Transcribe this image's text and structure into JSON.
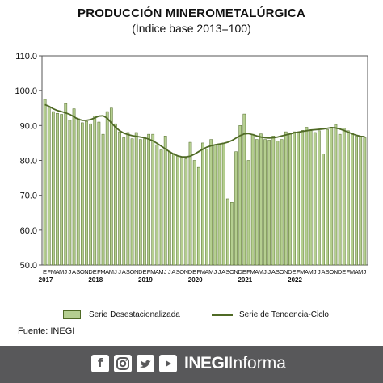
{
  "chart_data": {
    "type": "bar",
    "title": "PRODUCCIÓN MINEROMETALÚRGICA",
    "subtitle": "(Índice base 2013=100)",
    "xlabel": "",
    "ylabel": "",
    "ylim": [
      50,
      110
    ],
    "yticks": [
      "50.0",
      "60.0",
      "70.0",
      "80.0",
      "90.0",
      "100.0",
      "110.0"
    ],
    "grid": false,
    "legend_position": "bottom",
    "month_letters": [
      "E",
      "F",
      "M",
      "A",
      "M",
      "J",
      "J",
      "A",
      "S",
      "O",
      "N",
      "D"
    ],
    "years": [
      "2017",
      "2018",
      "2019",
      "2020",
      "2021",
      "2022"
    ],
    "series": [
      {
        "name": "Serie Desestacionalizada",
        "kind": "bar",
        "values": [
          97.5,
          95.0,
          94.0,
          93.5,
          93.2,
          96.3,
          91.5,
          94.8,
          92.0,
          90.8,
          91.2,
          90.5,
          92.8,
          91.0,
          87.5,
          94.0,
          95.0,
          90.5,
          88.2,
          86.5,
          88.0,
          86.2,
          88.0,
          86.0,
          86.2,
          87.5,
          87.5,
          84.5,
          83.0,
          87.0,
          82.5,
          82.0,
          81.2,
          81.0,
          80.5,
          85.2,
          80.0,
          78.0,
          85.0,
          83.2,
          86.0,
          84.5,
          84.8,
          85.0,
          69.0,
          68.0,
          82.5,
          90.0,
          93.3,
          80.0,
          87.5,
          86.0,
          87.6,
          86.0,
          85.8,
          87.0,
          85.5,
          86.0,
          88.2,
          87.5,
          88.2,
          88.0,
          88.6,
          89.5,
          88.5,
          88.0,
          88.5,
          81.8,
          88.8,
          89.5,
          90.3,
          87.5,
          89.2,
          88.5,
          87.8,
          87.0,
          86.8,
          86.5
        ]
      },
      {
        "name": "Serie de Tendencia-Ciclo",
        "kind": "line",
        "values": [
          96.0,
          95.5,
          94.8,
          94.3,
          94.0,
          93.6,
          93.2,
          92.5,
          91.8,
          91.5,
          91.5,
          91.7,
          92.2,
          92.7,
          92.8,
          92.1,
          90.8,
          89.5,
          88.5,
          87.8,
          87.4,
          87.1,
          86.9,
          86.7,
          86.5,
          86.1,
          85.6,
          84.9,
          84.1,
          83.3,
          82.5,
          81.8,
          81.3,
          81.0,
          81.0,
          81.2,
          81.8,
          82.5,
          83.2,
          83.8,
          84.2,
          84.5,
          84.7,
          84.9,
          85.2,
          85.7,
          86.4,
          87.1,
          87.6,
          87.7,
          87.4,
          87.0,
          86.7,
          86.5,
          86.4,
          86.5,
          86.7,
          87.0,
          87.3,
          87.6,
          87.9,
          88.1,
          88.3,
          88.5,
          88.7,
          88.8,
          88.9,
          89.0,
          89.2,
          89.4,
          89.3,
          89.0,
          88.6,
          88.1,
          87.6,
          87.2,
          86.9,
          86.8
        ]
      }
    ]
  },
  "legend": {
    "bars_label": "Serie Desestacionalizada",
    "line_label": "Serie de Tendencia-Ciclo"
  },
  "source": "Fuente: INEGI",
  "footer": {
    "brand_bold": "INEGI",
    "brand_regular": "Informa",
    "social_icons": [
      "facebook-icon",
      "instagram-icon",
      "twitter-icon",
      "youtube-icon"
    ]
  },
  "colors": {
    "bar_fill": "#b5cf90",
    "bar_stroke": "#4f6a25",
    "trend_line": "#4f6a25",
    "footer_bg": "#58585a"
  }
}
